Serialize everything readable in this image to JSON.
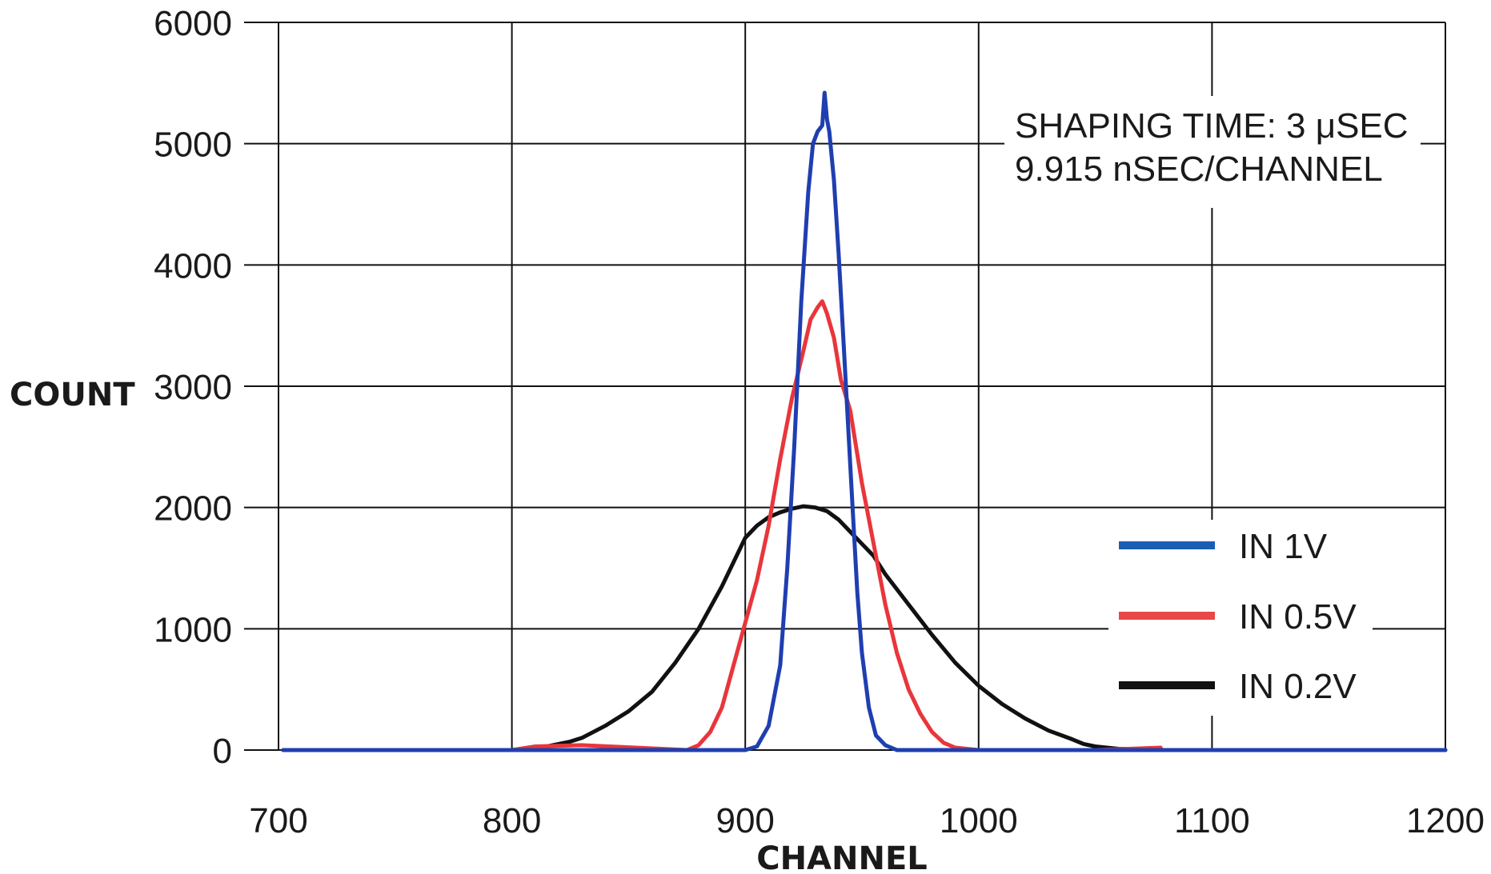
{
  "chart_data": {
    "type": "line",
    "title": "",
    "xlabel": "CHANNEL",
    "ylabel": "COUNT",
    "xlim": [
      700,
      1200
    ],
    "ylim": [
      0,
      6000
    ],
    "x_ticks": [
      "700",
      "800",
      "900",
      "1000",
      "1100",
      "1200"
    ],
    "y_ticks": [
      "0",
      "1000",
      "2000",
      "3000",
      "4000",
      "5000",
      "6000"
    ],
    "grid": true,
    "legend_position": "bottom-right",
    "annotations": [
      "SHAPING TIME: 3 μSEC",
      "9.915 nSEC/CHANNEL"
    ],
    "series": [
      {
        "name": "IN 1V",
        "color": "#1f3fb0",
        "legend_color": "#1a5fb4",
        "x": [
          702,
          880,
          900,
          905,
          910,
          915,
          918,
          921,
          924,
          927,
          929,
          931,
          933,
          934,
          935,
          936,
          938,
          940,
          942,
          944,
          946,
          948,
          950,
          953,
          956,
          960,
          965,
          975,
          1000,
          1100,
          1200
        ],
        "y": [
          0,
          0,
          0,
          30,
          200,
          700,
          1500,
          2500,
          3700,
          4600,
          5000,
          5100,
          5150,
          5420,
          5200,
          5100,
          4700,
          4100,
          3400,
          2700,
          2000,
          1300,
          800,
          350,
          120,
          40,
          0,
          0,
          0,
          0,
          0
        ]
      },
      {
        "name": "IN 0.5V",
        "color": "#e8363b",
        "legend_color": "#e84848",
        "x": [
          702,
          800,
          810,
          830,
          875,
          880,
          885,
          890,
          895,
          900,
          905,
          910,
          915,
          920,
          925,
          928,
          931,
          933,
          935,
          938,
          941,
          945,
          950,
          955,
          960,
          965,
          970,
          975,
          980,
          985,
          990,
          1000,
          1050,
          1078
        ],
        "y": [
          0,
          0,
          30,
          40,
          0,
          40,
          150,
          350,
          700,
          1050,
          1400,
          1850,
          2400,
          2900,
          3300,
          3550,
          3650,
          3700,
          3600,
          3400,
          3050,
          2800,
          2200,
          1700,
          1200,
          800,
          500,
          300,
          150,
          60,
          20,
          0,
          0,
          20
        ]
      },
      {
        "name": "IN 0.2V",
        "color": "#111111",
        "legend_color": "#111111",
        "x": [
          702,
          800,
          805,
          810,
          815,
          820,
          825,
          830,
          840,
          850,
          860,
          870,
          880,
          890,
          895,
          900,
          905,
          910,
          915,
          920,
          925,
          930,
          935,
          940,
          945,
          950,
          955,
          960,
          970,
          980,
          990,
          1000,
          1010,
          1020,
          1030,
          1040,
          1045,
          1050,
          1060,
          1080,
          1100,
          1200
        ],
        "y": [
          0,
          0,
          10,
          20,
          30,
          50,
          70,
          100,
          200,
          320,
          480,
          720,
          1000,
          1350,
          1550,
          1750,
          1850,
          1920,
          1960,
          1990,
          2010,
          2000,
          1970,
          1900,
          1800,
          1700,
          1600,
          1450,
          1200,
          950,
          720,
          530,
          380,
          260,
          160,
          90,
          50,
          30,
          10,
          0,
          0,
          0
        ]
      }
    ]
  }
}
